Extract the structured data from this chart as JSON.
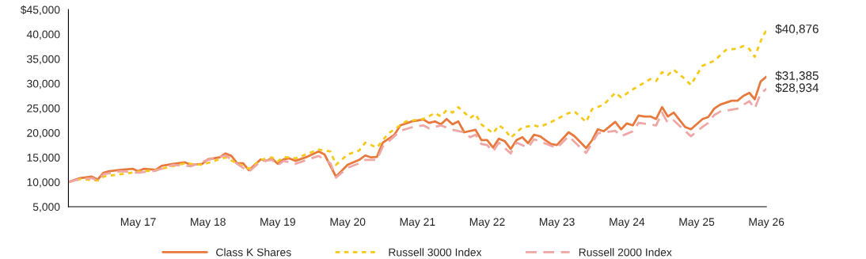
{
  "chart_data": {
    "type": "line",
    "xlim": [
      "2016-05",
      "2026-05"
    ],
    "xticks": [
      {
        "value": "2017-05",
        "label": "May 17"
      },
      {
        "value": "2018-05",
        "label": "May 18"
      },
      {
        "value": "2019-05",
        "label": "May 19"
      },
      {
        "value": "2020-05",
        "label": "May 20"
      },
      {
        "value": "2021-05",
        "label": "May 21"
      },
      {
        "value": "2022-05",
        "label": "May 22"
      },
      {
        "value": "2023-05",
        "label": "May 23"
      },
      {
        "value": "2024-05",
        "label": "May 24"
      },
      {
        "value": "2025-05",
        "label": "May 25"
      },
      {
        "value": "2026-05",
        "label": "May 26"
      }
    ],
    "ylim": [
      5000,
      45000
    ],
    "yticks": [
      {
        "value": 5000,
        "label": "5,000"
      },
      {
        "value": 10000,
        "label": "10,000"
      },
      {
        "value": 15000,
        "label": "15,000"
      },
      {
        "value": 20000,
        "label": "20,000"
      },
      {
        "value": 25000,
        "label": "25,000"
      },
      {
        "value": 30000,
        "label": "30,000"
      },
      {
        "value": 35000,
        "label": "35,000"
      },
      {
        "value": 40000,
        "label": "40,000"
      },
      {
        "value": 45000,
        "label": "$45,000"
      }
    ],
    "grid": false,
    "legend": "bottom",
    "series": [
      {
        "name": "Class K Shares",
        "color": "#e8793c",
        "line_style": "solid",
        "x": [
          "2016-05",
          "2016-07",
          "2016-09",
          "2016-10",
          "2016-11",
          "2016-12",
          "2017-02",
          "2017-04",
          "2017-05",
          "2017-06",
          "2017-08",
          "2017-09",
          "2017-11",
          "2018-01",
          "2018-02",
          "2018-04",
          "2018-05",
          "2018-07",
          "2018-08",
          "2018-09",
          "2018-10",
          "2018-11",
          "2018-12",
          "2019-02",
          "2019-03",
          "2019-04",
          "2019-05",
          "2019-06",
          "2019-07",
          "2019-08",
          "2019-10",
          "2019-12",
          "2020-01",
          "2020-03",
          "2020-05",
          "2020-07",
          "2020-08",
          "2020-09",
          "2020-10",
          "2020-11",
          "2021-01",
          "2021-02",
          "2021-04",
          "2021-06",
          "2021-07",
          "2021-08",
          "2021-09",
          "2021-10",
          "2021-11",
          "2021-12",
          "2022-01",
          "2022-03",
          "2022-04",
          "2022-05",
          "2022-06",
          "2022-07",
          "2022-08",
          "2022-09",
          "2022-10",
          "2022-11",
          "2022-12",
          "2023-01",
          "2023-02",
          "2023-03",
          "2023-04",
          "2023-05",
          "2023-07",
          "2023-08",
          "2023-10",
          "2023-11",
          "2023-12",
          "2024-01",
          "2024-03",
          "2024-04",
          "2024-05",
          "2024-06",
          "2024-07",
          "2024-08",
          "2024-09",
          "2024-10",
          "2024-11",
          "2024-12",
          "2025-01",
          "2025-03",
          "2025-04",
          "2025-06",
          "2025-07",
          "2025-08",
          "2025-09",
          "2025-11",
          "2025-12",
          "2026-01",
          "2026-02",
          "2026-03",
          "2026-04",
          "2026-05"
        ],
        "values": [
          10000,
          10800,
          11100,
          10500,
          11900,
          12200,
          12500,
          12700,
          12200,
          12700,
          12500,
          13300,
          13700,
          14000,
          13500,
          13700,
          14600,
          15000,
          15800,
          15300,
          13800,
          13800,
          12400,
          14600,
          14300,
          14800,
          13700,
          14600,
          14800,
          14300,
          15100,
          16200,
          15600,
          11100,
          13500,
          14500,
          15400,
          15000,
          15100,
          18000,
          19600,
          21500,
          22300,
          22700,
          22000,
          22300,
          21700,
          22800,
          21700,
          22300,
          20100,
          20600,
          18500,
          18500,
          17000,
          18800,
          18300,
          16700,
          18500,
          19100,
          17900,
          19600,
          19300,
          18500,
          17700,
          17500,
          20100,
          19300,
          16900,
          18500,
          20700,
          20300,
          22200,
          20700,
          21900,
          21500,
          23500,
          23300,
          23300,
          22800,
          25200,
          23300,
          24100,
          21200,
          20700,
          22800,
          23200,
          24900,
          25700,
          26500,
          26500,
          27500,
          28100,
          26800,
          30400,
          31385
        ]
      },
      {
        "name": "Russell 3000 Index",
        "color": "#f5c919",
        "line_style": "dotted",
        "x": [
          "2016-05",
          "2016-07",
          "2016-10",
          "2016-11",
          "2017-05",
          "2017-08",
          "2018-01",
          "2018-04",
          "2018-08",
          "2018-10",
          "2018-12",
          "2019-02",
          "2019-04",
          "2019-05",
          "2019-06",
          "2019-08",
          "2019-12",
          "2020-02",
          "2020-03",
          "2020-05",
          "2020-07",
          "2020-08",
          "2020-10",
          "2020-12",
          "2021-01",
          "2021-03",
          "2021-06",
          "2021-08",
          "2021-09",
          "2021-10",
          "2021-11",
          "2021-12",
          "2022-02",
          "2022-03",
          "2022-04",
          "2022-06",
          "2022-07",
          "2022-08",
          "2022-09",
          "2022-11",
          "2023-01",
          "2023-02",
          "2023-04",
          "2023-07",
          "2023-08",
          "2023-10",
          "2023-11",
          "2024-01",
          "2024-03",
          "2024-04",
          "2024-06",
          "2024-09",
          "2024-10",
          "2024-11",
          "2024-12",
          "2025-01",
          "2025-03",
          "2025-04",
          "2025-05",
          "2025-06",
          "2025-08",
          "2025-10",
          "2025-12",
          "2026-01",
          "2026-02",
          "2026-03",
          "2026-04",
          "2026-05"
        ],
        "values": [
          10000,
          10600,
          10300,
          11100,
          12100,
          12400,
          13800,
          13500,
          15000,
          13800,
          12700,
          14500,
          15000,
          14200,
          15100,
          14800,
          16600,
          16200,
          13500,
          15600,
          16400,
          18000,
          17000,
          19900,
          20700,
          22300,
          22800,
          24000,
          23300,
          24600,
          24100,
          25200,
          23000,
          23800,
          21700,
          19900,
          21500,
          20700,
          19000,
          21100,
          21500,
          21200,
          22200,
          24000,
          24300,
          22200,
          24800,
          25700,
          28100,
          27200,
          28800,
          30900,
          30500,
          32300,
          31700,
          32800,
          30900,
          29700,
          31700,
          33600,
          34600,
          36800,
          37100,
          37600,
          37000,
          35400,
          38600,
          40876
        ]
      },
      {
        "name": "Russell 2000 Index",
        "color": "#efa7a6",
        "line_style": "dashed",
        "x": [
          "2016-05",
          "2016-07",
          "2016-09",
          "2016-10",
          "2016-11",
          "2017-02",
          "2017-05",
          "2017-08",
          "2017-11",
          "2018-02",
          "2018-05",
          "2018-08",
          "2018-10",
          "2018-12",
          "2019-02",
          "2019-04",
          "2019-05",
          "2019-06",
          "2019-08",
          "2019-12",
          "2020-02",
          "2020-03",
          "2020-05",
          "2020-07",
          "2020-08",
          "2020-10",
          "2020-11",
          "2021-02",
          "2021-04",
          "2021-06",
          "2021-07",
          "2021-09",
          "2021-11",
          "2022-01",
          "2022-02",
          "2022-03",
          "2022-04",
          "2022-05",
          "2022-06",
          "2022-07",
          "2022-09",
          "2022-10",
          "2022-12",
          "2023-01",
          "2023-05",
          "2023-07",
          "2023-10",
          "2023-12",
          "2024-03",
          "2024-04",
          "2024-06",
          "2024-07",
          "2024-10",
          "2024-11",
          "2024-12",
          "2025-01",
          "2025-04",
          "2025-06",
          "2025-07",
          "2025-08",
          "2025-09",
          "2025-12",
          "2026-01",
          "2026-02",
          "2026-03",
          "2026-04",
          "2026-05"
        ],
        "values": [
          10000,
          10600,
          10800,
          10300,
          11600,
          12200,
          11900,
          12300,
          13500,
          13200,
          14500,
          15400,
          13700,
          12100,
          14200,
          14500,
          13400,
          14300,
          13700,
          15300,
          13800,
          10900,
          12900,
          13800,
          14500,
          14500,
          17200,
          20400,
          21100,
          21500,
          20900,
          21500,
          20600,
          20100,
          19100,
          19600,
          17700,
          17500,
          16200,
          18000,
          15800,
          18000,
          17000,
          18700,
          16900,
          19300,
          15900,
          19900,
          20400,
          19300,
          20300,
          22000,
          21500,
          24100,
          22000,
          22500,
          19300,
          21200,
          22000,
          23600,
          24300,
          24900,
          25700,
          26400,
          24900,
          28000,
          28934
        ]
      }
    ],
    "annotations": [
      {
        "text": "$40,876",
        "x": "2026-05",
        "y": 40876
      },
      {
        "text": "$31,385",
        "x": "2026-05",
        "y": 31385
      },
      {
        "text": "$28,934",
        "x": "2026-05",
        "y": 28934
      }
    ]
  }
}
